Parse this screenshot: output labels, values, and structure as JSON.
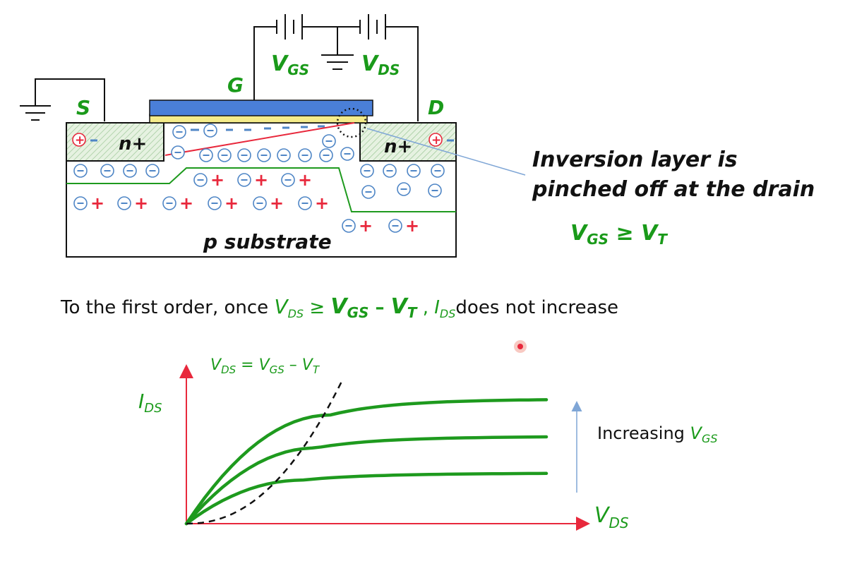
{
  "mosfet": {
    "source_label": "S",
    "gate_label": "G",
    "drain_label": "D",
    "vgs_label": "V",
    "vgs_sub": "GS",
    "vds_label": "V",
    "vds_sub": "DS",
    "nplus_left": "n+",
    "nplus_right": "n+",
    "substrate_label": "p substrate",
    "plus_symbol": "+",
    "minus_symbol": "−",
    "neg_ion_symbol": "−",
    "pos_ion_symbol": "+"
  },
  "callout": {
    "line1": "Inversion layer is",
    "line2": "pinched off at the drain",
    "condition_v": "V",
    "condition_gs": "GS",
    "condition_ge": " ≥ ",
    "condition_vt": "V",
    "condition_t": "T"
  },
  "statement": {
    "prefix": "To the first order, once ",
    "vds": "V",
    "vds_sub": "DS",
    "ge": " ≥ ",
    "vgs": "V",
    "vgs_sub": "GS",
    "minus": " – ",
    "vt": "V",
    "vt_sub": "T",
    "comma": " , ",
    "ids": "I",
    "ids_sub": "DS",
    "suffix": "does not increase"
  },
  "chart_data": {
    "type": "line",
    "ylabel": "I",
    "ylabel_sub": "DS",
    "xlabel": "V",
    "xlabel_sub": "DS",
    "boundary_label": "V",
    "boundary_label_sub1": "DS",
    "boundary_label_eq": " = ",
    "boundary_label_v2": "V",
    "boundary_label_sub2": "GS",
    "boundary_label_minus": " – ",
    "boundary_label_v3": "V",
    "boundary_label_sub3": "T",
    "arrow_label": "Increasing ",
    "arrow_label_v": "V",
    "arrow_label_sub": "GS",
    "curve_color": "#1e9a1e",
    "axis_color": "#e8283c",
    "boundary_color": "#111111",
    "arrow_color": "#7fa6d6",
    "series_count": 3
  },
  "colors": {
    "green": "#1a9a1a",
    "red": "#e8283c",
    "gate_blue": "#4a7fd8",
    "oxide_yellow": "#f5ec8a",
    "ion_blue": "#4f86c6"
  }
}
